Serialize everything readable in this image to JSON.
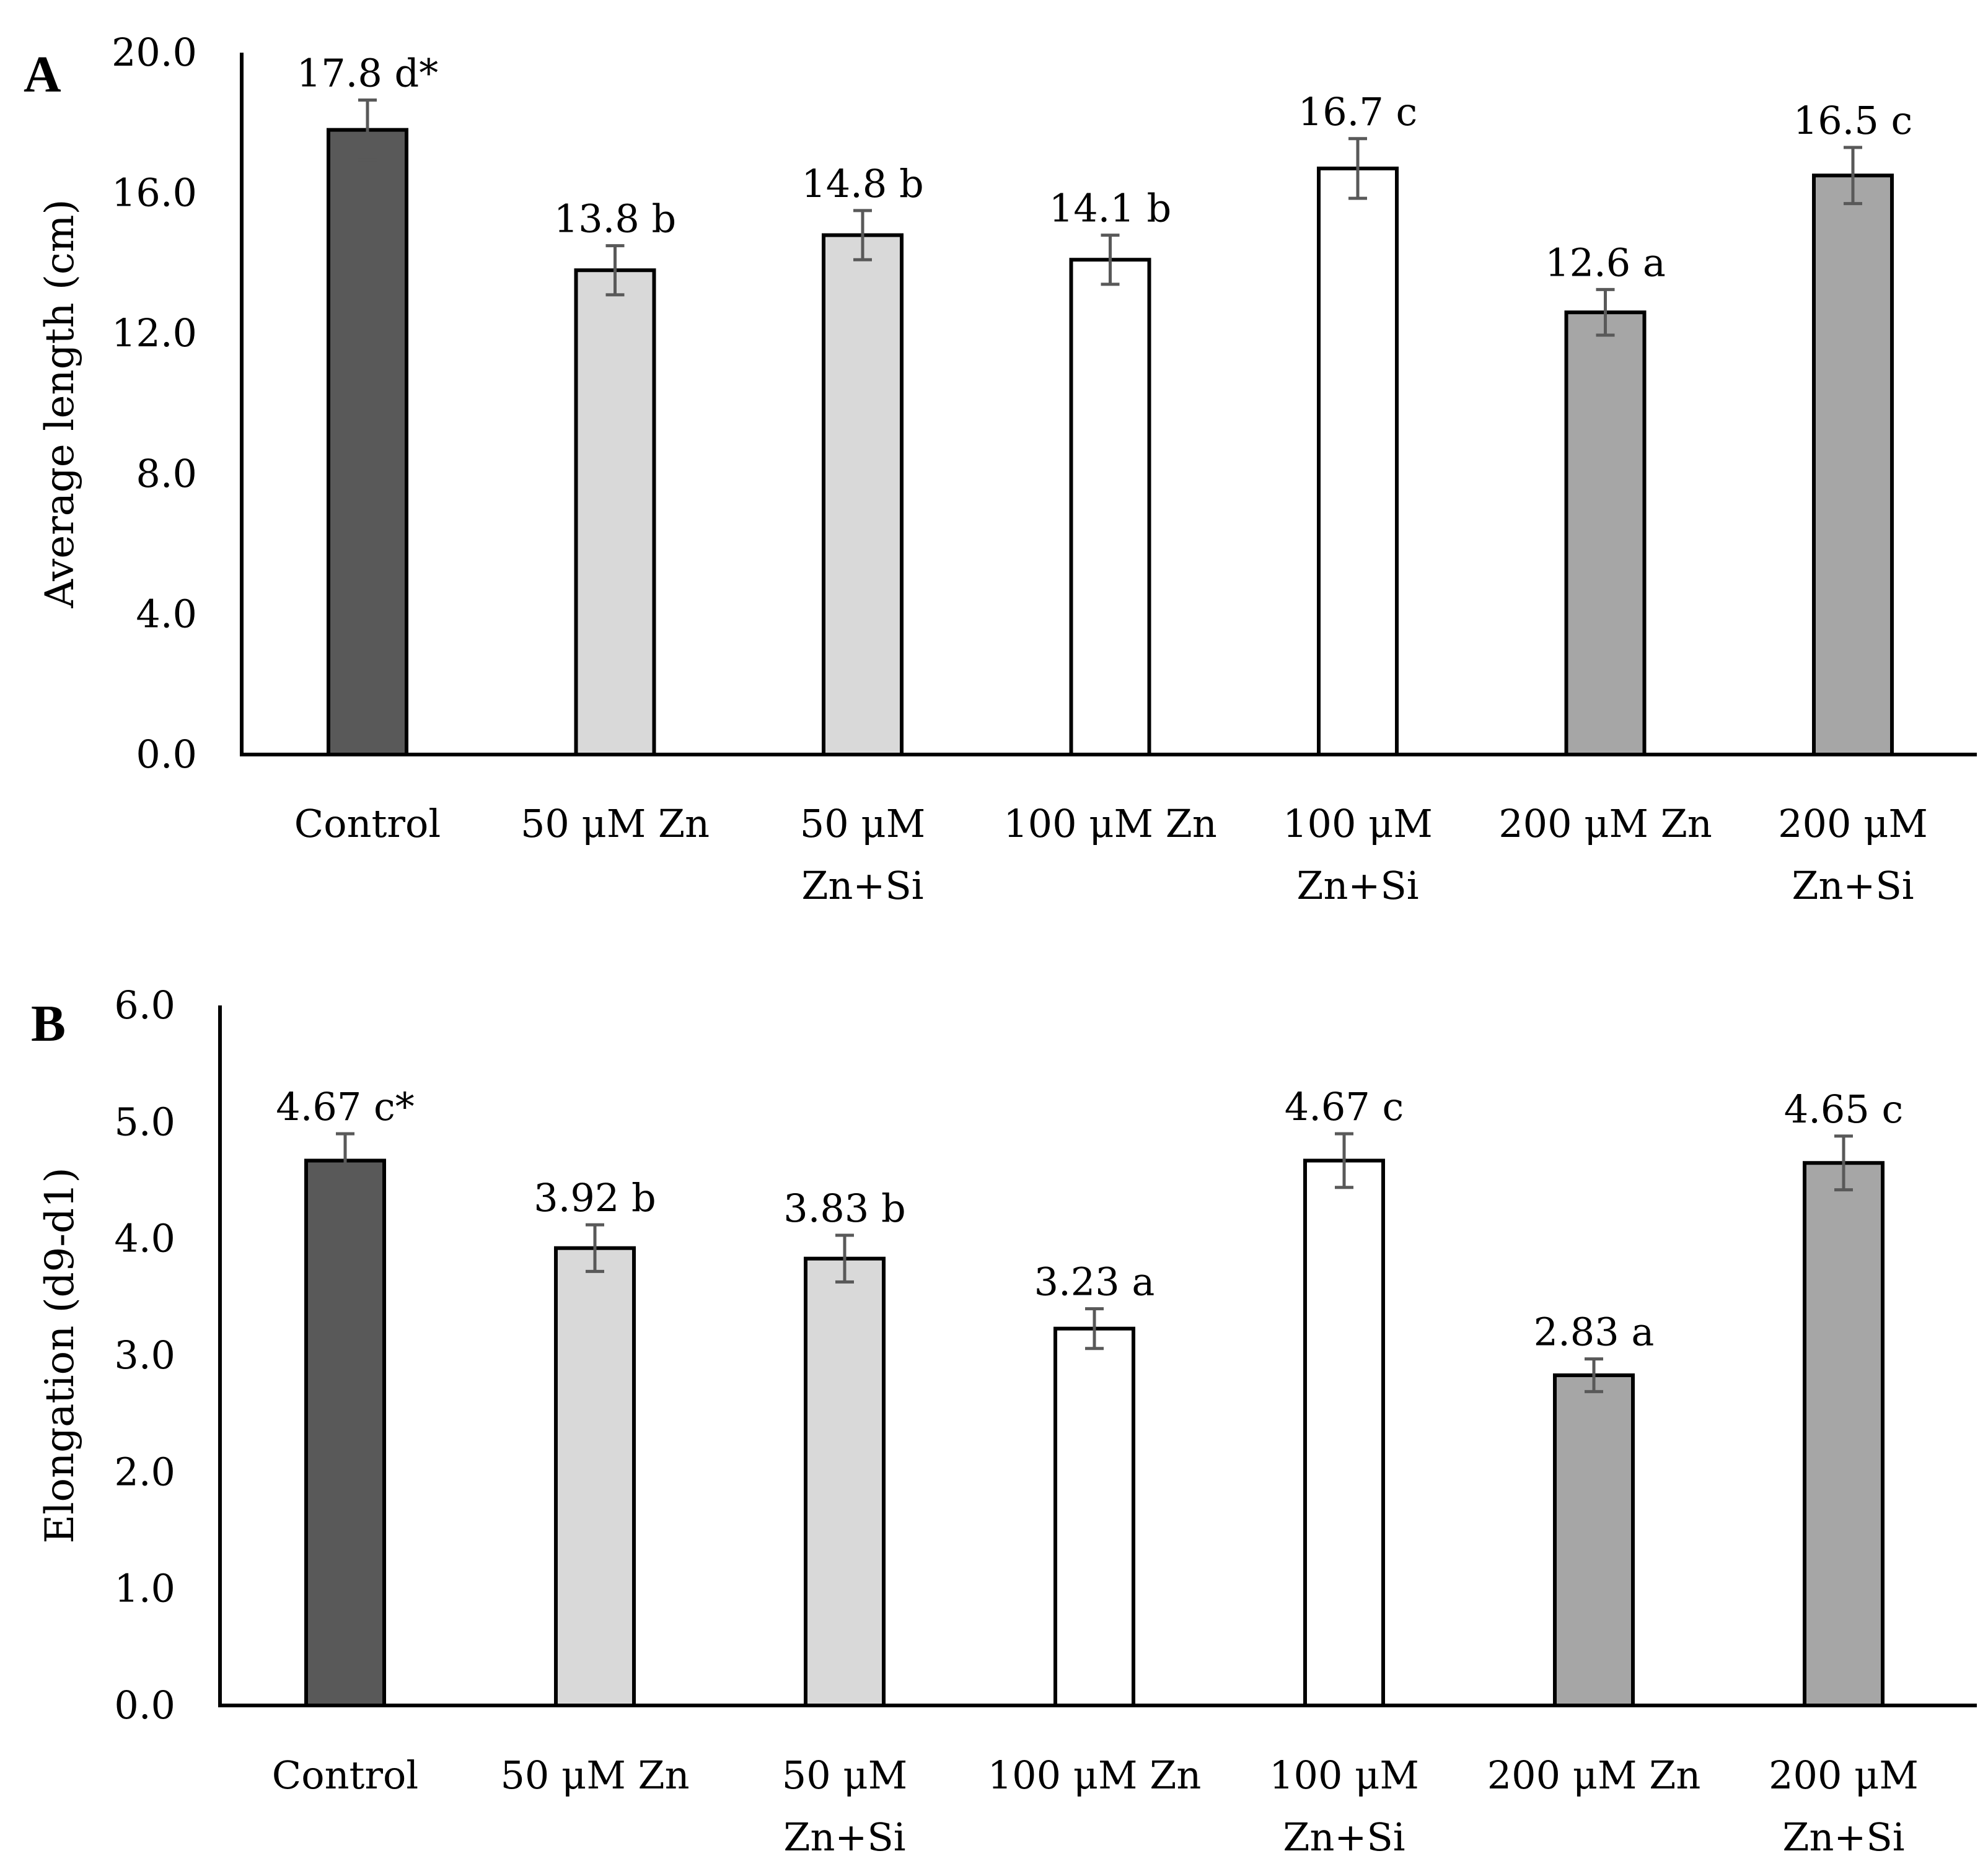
{
  "colors": {
    "control": "#595959",
    "zn": "#d9d9d9",
    "zn100": "#ffffff",
    "zn200": "#a6a6a6"
  },
  "chart_data": [
    {
      "type": "bar",
      "panel": "A",
      "title": "",
      "xlabel": "",
      "ylabel": "Average length (cm)",
      "ylim": [
        0,
        20
      ],
      "yticks": [
        "0.0",
        "4.0",
        "8.0",
        "12.0",
        "16.0",
        "20.0"
      ],
      "categories": [
        [
          "Control"
        ],
        [
          "50 μM Zn"
        ],
        [
          "50 μM",
          "Zn+Si"
        ],
        [
          "100 μM Zn"
        ],
        [
          "100 μM",
          "Zn+Si"
        ],
        [
          "200 μM Zn"
        ],
        [
          "200 μM",
          "Zn+Si"
        ]
      ],
      "values": [
        17.8,
        13.8,
        14.8,
        14.1,
        16.7,
        12.6,
        16.5
      ],
      "errors": [
        0.85,
        0.7,
        0.7,
        0.7,
        0.85,
        0.65,
        0.8
      ],
      "labels": [
        "17.8 d*",
        "13.8 b",
        "14.8 b",
        "14.1 b",
        "16.7 c",
        "12.6 a",
        "16.5 c"
      ],
      "bar_colors": [
        "control",
        "zn",
        "zn",
        "zn100",
        "zn100",
        "zn200",
        "zn200"
      ]
    },
    {
      "type": "bar",
      "panel": "B",
      "title": "",
      "xlabel": "",
      "ylabel": "Elongation (d9-d1)",
      "ylim": [
        0,
        6
      ],
      "yticks": [
        "0.0",
        "1.0",
        "2.0",
        "3.0",
        "4.0",
        "5.0",
        "6.0"
      ],
      "categories": [
        [
          "Control"
        ],
        [
          "50 μM Zn"
        ],
        [
          "50 μM",
          "Zn+Si"
        ],
        [
          "100 μM Zn"
        ],
        [
          "100 μM",
          "Zn+Si"
        ],
        [
          "200 μM Zn"
        ],
        [
          "200 μM",
          "Zn+Si"
        ]
      ],
      "values": [
        4.67,
        3.92,
        3.83,
        3.23,
        4.67,
        2.83,
        4.65
      ],
      "errors": [
        0.23,
        0.2,
        0.2,
        0.17,
        0.23,
        0.14,
        0.23
      ],
      "labels": [
        "4.67 c*",
        "3.92 b",
        "3.83 b",
        "3.23 a",
        "4.67 c",
        "2.83 a",
        "4.65 c"
      ],
      "bar_colors": [
        "control",
        "zn",
        "zn",
        "zn100",
        "zn100",
        "zn200",
        "zn200"
      ]
    }
  ]
}
